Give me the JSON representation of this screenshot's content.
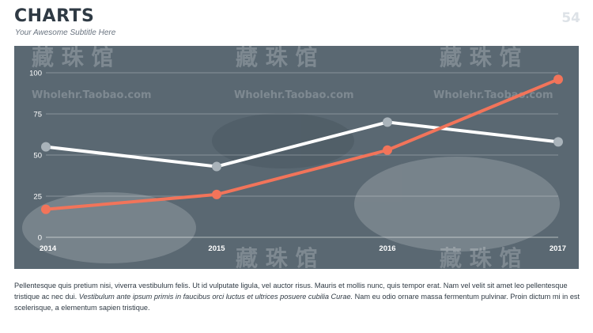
{
  "header": {
    "title": "CHARTS",
    "subtitle": "Your Awesome Subtitle Here",
    "page_number": "54"
  },
  "watermark": {
    "characters": "藏 珠 馆",
    "url": "Wholehr.Taobao.com"
  },
  "colors": {
    "panel_background": "#5a6872",
    "series_white": "#ffffff",
    "series_orange": "#f2745a",
    "marker_white": "#a9b3ba",
    "title": "#2f3a44"
  },
  "chart_data": {
    "type": "line",
    "x": [
      "2014",
      "2015",
      "2016",
      "2017"
    ],
    "ylim": [
      0,
      100
    ],
    "yticks": [
      "0",
      "25",
      "50",
      "75",
      "100"
    ],
    "grid": true,
    "series": [
      {
        "values": [
          55,
          43,
          70,
          58
        ],
        "color": "#ffffff"
      },
      {
        "values": [
          17,
          26,
          53,
          96
        ],
        "color": "#f2745a"
      }
    ]
  },
  "body": {
    "text_1": "Pellentesque quis pretium nisi, viverra vestibulum felis. Ut id vulputate ligula, vel auctor risus. Mauris et mollis nunc, quis tempor erat. Nam vel velit sit amet leo pellentesque tristique ac nec dui. ",
    "text_italic": "Vestibulum ante ipsum primis in faucibus orci luctus et ultrices posuere cubilia Curae.",
    "text_2": " Nam eu odio ornare massa fermentum pulvinar. Proin dictum mi in est scelerisque, a elementum sapien tristique."
  }
}
